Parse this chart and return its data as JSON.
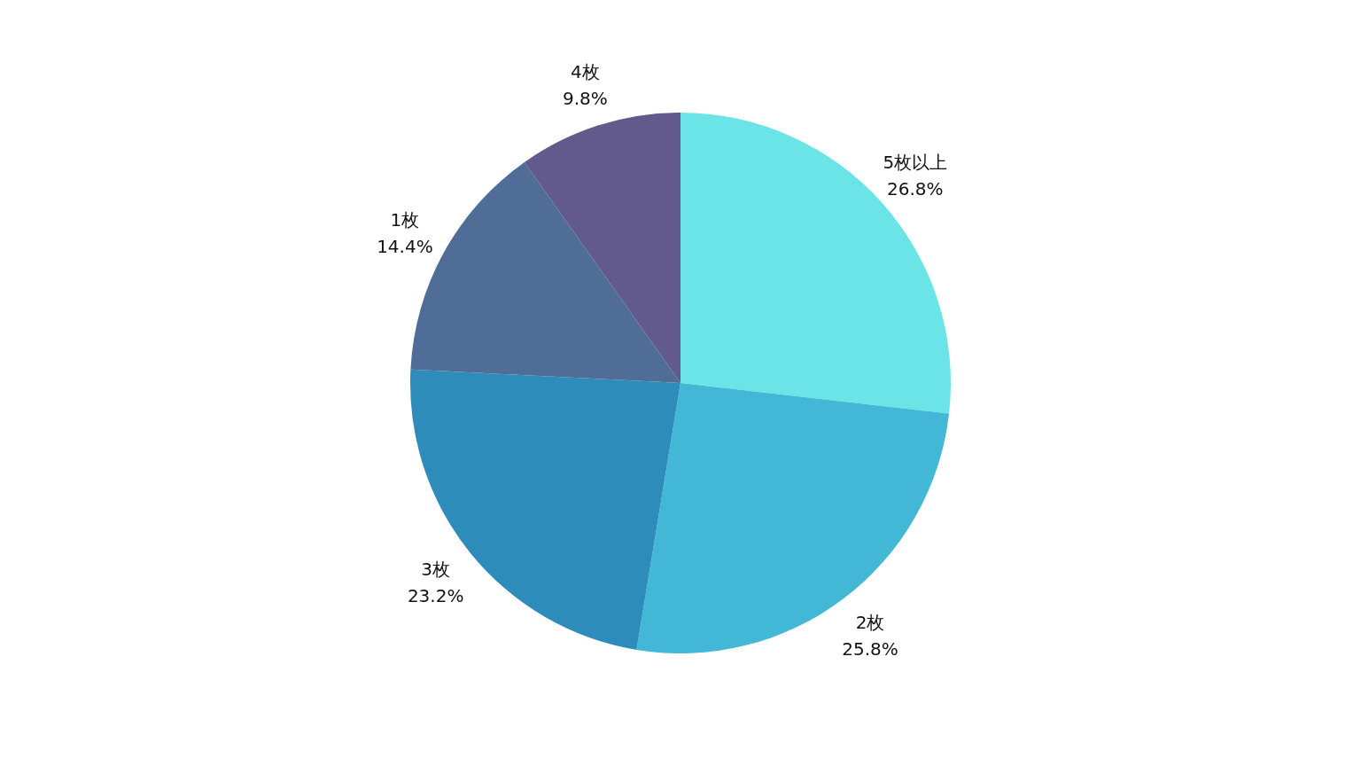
{
  "chart_data": {
    "type": "pie",
    "categories": [
      "5枚以上",
      "2枚",
      "3枚",
      "1枚",
      "4枚"
    ],
    "values": [
      26.8,
      25.8,
      23.2,
      14.4,
      9.8
    ],
    "colors": [
      "#6be4e8",
      "#42b8d6",
      "#2e8cba",
      "#4f6d96",
      "#625a8c"
    ],
    "value_labels": [
      "26.8%",
      "25.8%",
      "23.2%",
      "14.4%",
      "9.8%"
    ],
    "legend": false
  }
}
